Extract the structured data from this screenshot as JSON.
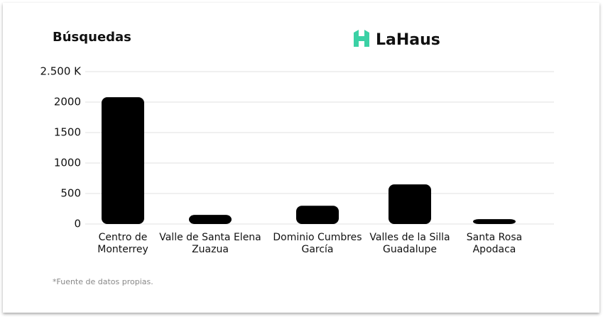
{
  "chart_data": {
    "type": "bar",
    "title": "Búsquedas",
    "brand": "LaHaus",
    "categories": [
      "Centro de\nMonterrey",
      "Valle de Santa Elena\nZuazua",
      "Dominio Cumbres\nGarcía",
      "Valles de la Silla\nGuadalupe",
      "Santa Rosa\nApodaca"
    ],
    "values": [
      2080,
      150,
      300,
      650,
      80
    ],
    "color": "#000000",
    "ylim": [
      0,
      2500
    ],
    "yticks": [
      0,
      500,
      1000,
      1500,
      2000,
      {
        "value": 2500,
        "label": "2.500 K"
      }
    ],
    "grid": true,
    "footnote": "*Fuente de datos propias."
  }
}
